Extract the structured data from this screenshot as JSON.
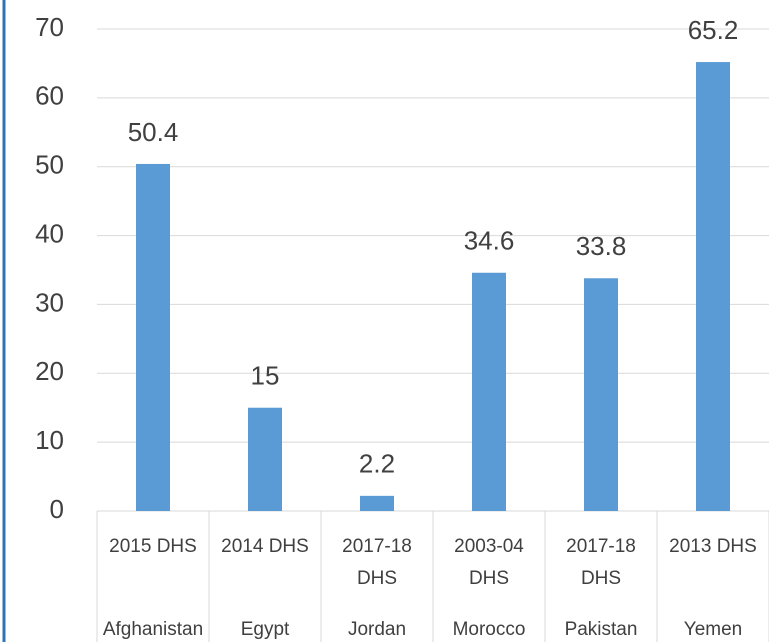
{
  "chart_data": {
    "type": "bar",
    "categories": [
      "2015 DHS",
      "2014 DHS",
      "2017-18 DHS",
      "2003-04 DHS",
      "2017-18 DHS",
      "2013 DHS"
    ],
    "category_groups": [
      "Afghanistan",
      "Egypt",
      "Jordan",
      "Morocco",
      "Pakistan",
      "Yemen"
    ],
    "values": [
      50.4,
      15,
      2.2,
      34.6,
      33.8,
      65.2
    ],
    "color": "#5b9bd5",
    "ylim": [
      0,
      70
    ],
    "yticks": [
      0,
      10,
      20,
      30,
      40,
      50,
      60,
      70
    ],
    "grid": true
  }
}
